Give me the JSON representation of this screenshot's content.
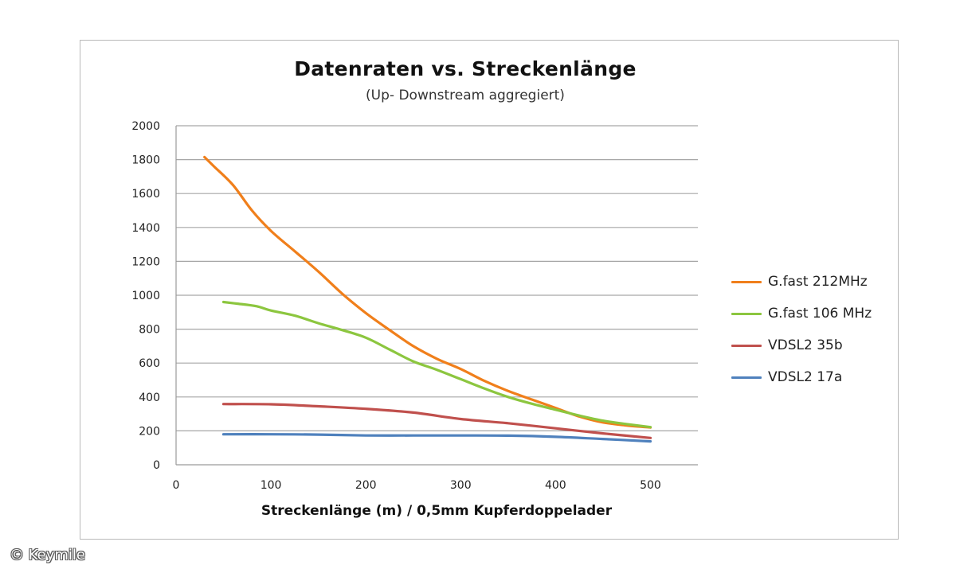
{
  "chart_data": {
    "type": "line",
    "title": "Datenraten vs. Streckenlänge",
    "subtitle": "(Up- Downstream aggregiert)",
    "xlabel": "Streckenlänge (m) / 0,5mm Kupferdoppelader",
    "ylabel": "",
    "xlim": [
      0,
      550
    ],
    "ylim": [
      0,
      2000
    ],
    "xticks": [
      0,
      100,
      200,
      300,
      400,
      500
    ],
    "yticks": [
      0,
      200,
      400,
      600,
      800,
      1000,
      1200,
      1400,
      1600,
      1800,
      2000
    ],
    "grid": "horizontal",
    "legend_position": "right",
    "series": [
      {
        "name": "G.fast 212MHz",
        "color": "#f07f1b",
        "points": [
          [
            30,
            1815
          ],
          [
            40,
            1760
          ],
          [
            60,
            1650
          ],
          [
            80,
            1500
          ],
          [
            100,
            1380
          ],
          [
            125,
            1260
          ],
          [
            150,
            1140
          ],
          [
            175,
            1010
          ],
          [
            200,
            895
          ],
          [
            225,
            795
          ],
          [
            250,
            700
          ],
          [
            275,
            625
          ],
          [
            300,
            565
          ],
          [
            325,
            495
          ],
          [
            350,
            435
          ],
          [
            375,
            385
          ],
          [
            400,
            335
          ],
          [
            425,
            285
          ],
          [
            450,
            250
          ],
          [
            475,
            232
          ],
          [
            500,
            220
          ]
        ]
      },
      {
        "name": "G.fast 106 MHz",
        "color": "#8cc63f",
        "points": [
          [
            50,
            960
          ],
          [
            65,
            950
          ],
          [
            85,
            935
          ],
          [
            100,
            910
          ],
          [
            125,
            880
          ],
          [
            150,
            835
          ],
          [
            175,
            795
          ],
          [
            200,
            750
          ],
          [
            225,
            680
          ],
          [
            250,
            610
          ],
          [
            275,
            560
          ],
          [
            300,
            505
          ],
          [
            325,
            450
          ],
          [
            350,
            400
          ],
          [
            375,
            360
          ],
          [
            400,
            325
          ],
          [
            425,
            290
          ],
          [
            450,
            260
          ],
          [
            475,
            240
          ],
          [
            500,
            222
          ]
        ]
      },
      {
        "name": "VDSL2 35b",
        "color": "#c0504d",
        "points": [
          [
            50,
            358
          ],
          [
            100,
            357
          ],
          [
            150,
            345
          ],
          [
            200,
            330
          ],
          [
            250,
            308
          ],
          [
            300,
            270
          ],
          [
            350,
            245
          ],
          [
            400,
            215
          ],
          [
            450,
            185
          ],
          [
            500,
            158
          ]
        ]
      },
      {
        "name": "VDSL2 17a",
        "color": "#4f81bd",
        "points": [
          [
            50,
            180
          ],
          [
            100,
            180
          ],
          [
            150,
            178
          ],
          [
            200,
            173
          ],
          [
            250,
            173
          ],
          [
            300,
            173
          ],
          [
            350,
            172
          ],
          [
            400,
            165
          ],
          [
            450,
            152
          ],
          [
            500,
            138
          ]
        ]
      }
    ]
  },
  "copyright": "© Keymile"
}
